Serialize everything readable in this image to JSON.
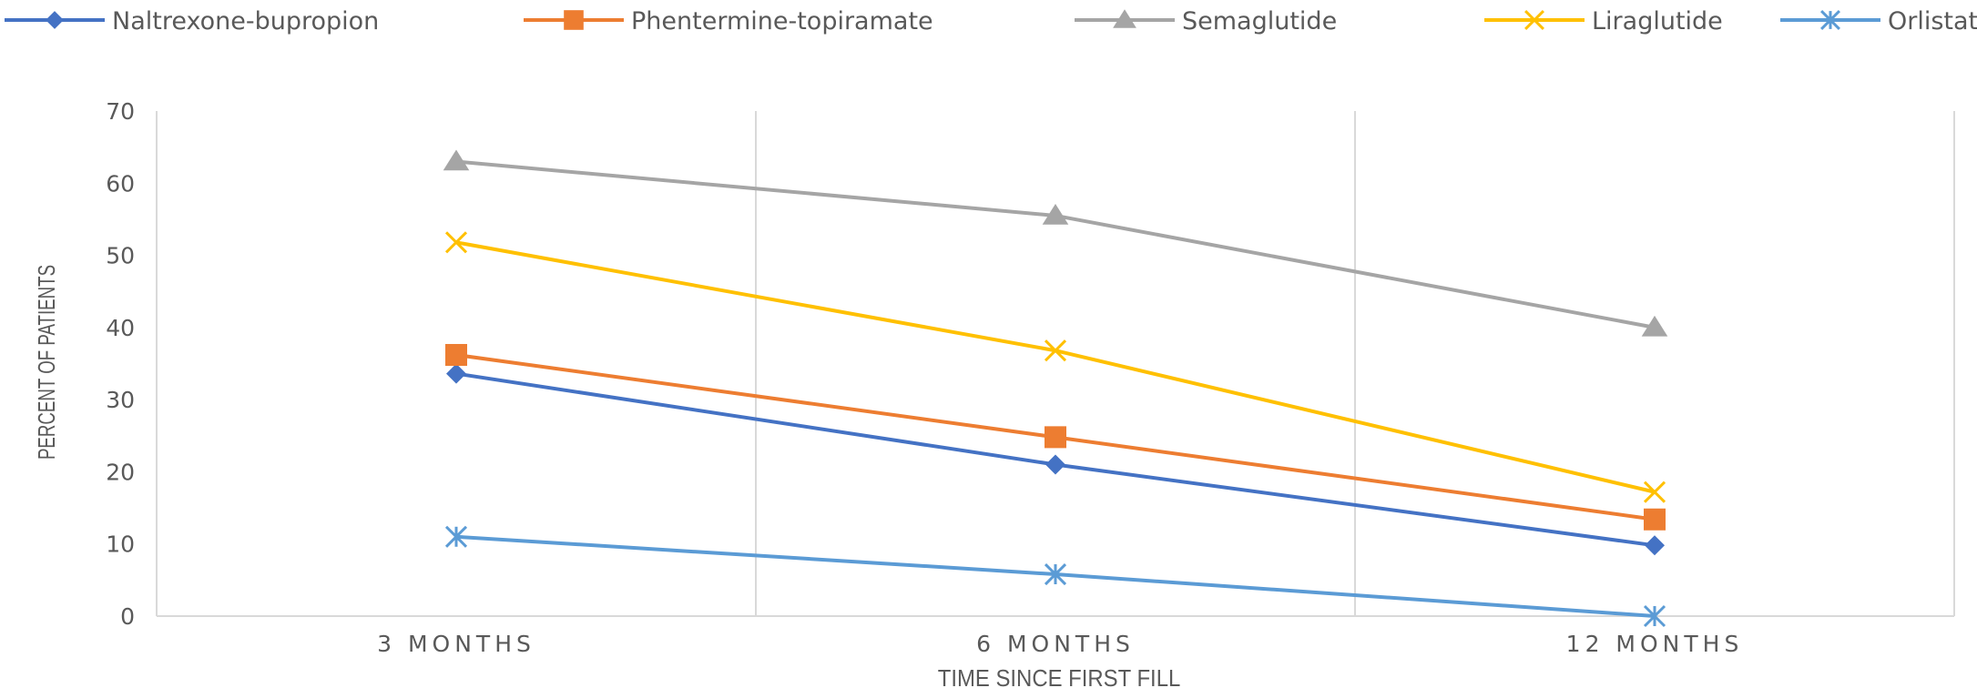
{
  "chart_data": {
    "type": "line",
    "title": "",
    "xlabel": "TIME SINCE FIRST FILL",
    "ylabel": "PERCENT OF PATIENTS",
    "categories": [
      "3 MONTHS",
      "6 MONTHS",
      "12 MONTHS"
    ],
    "ylim": [
      0,
      70
    ],
    "yticks": [
      0,
      10,
      20,
      30,
      40,
      50,
      60,
      70
    ],
    "grid": "vertical lines between categories",
    "legend_position": "top",
    "series": [
      {
        "name": "Naltrexone-bupropion",
        "values": [
          33.6,
          21.0,
          9.8
        ],
        "color": "#4472C4",
        "marker": "diamond"
      },
      {
        "name": "Phentermine-topiramate",
        "values": [
          36.2,
          24.8,
          13.4
        ],
        "color": "#ED7D31",
        "marker": "square"
      },
      {
        "name": "Semaglutide",
        "values": [
          63.0,
          55.5,
          40.0
        ],
        "color": "#A5A5A5",
        "marker": "triangle"
      },
      {
        "name": "Liraglutide",
        "values": [
          51.8,
          36.8,
          17.2
        ],
        "color": "#FFC000",
        "marker": "x"
      },
      {
        "name": "Orlistat",
        "values": [
          11.0,
          5.8,
          0.0
        ],
        "color": "#5B9BD5",
        "marker": "star"
      }
    ]
  }
}
